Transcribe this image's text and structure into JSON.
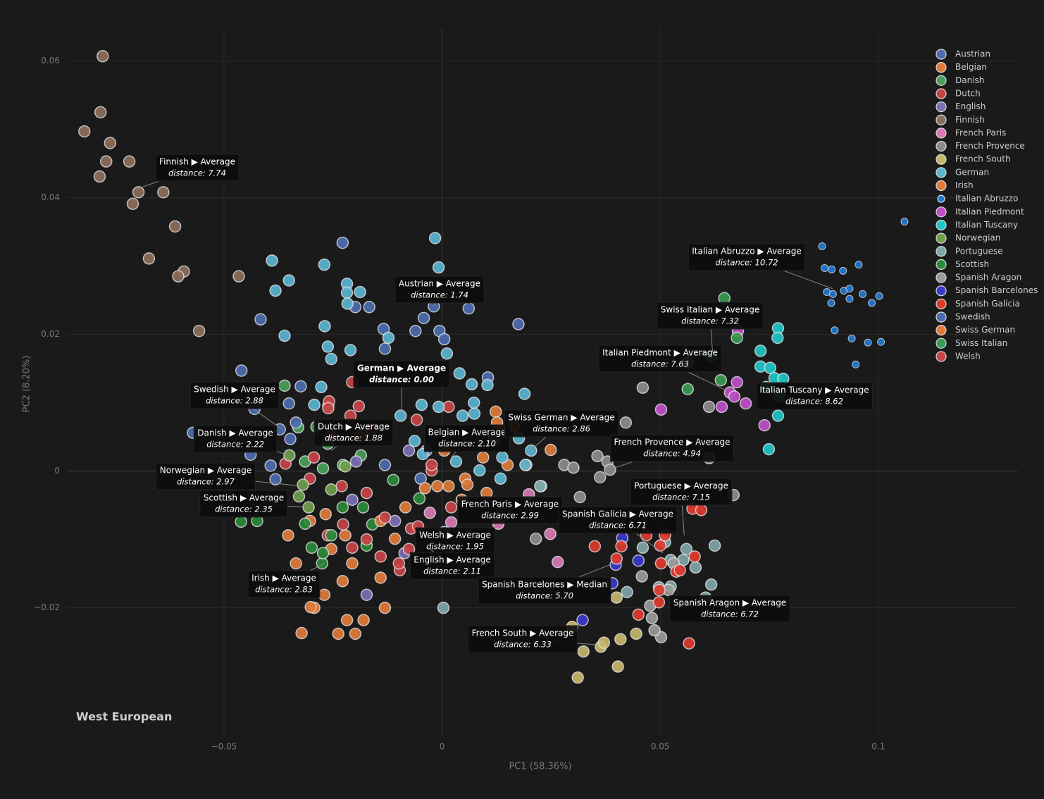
{
  "chart_data": {
    "type": "scatter",
    "title": "West European",
    "xlabel": "PC1 (58.36%)",
    "ylabel": "PC2 (8.20%)",
    "xlim": [
      -0.086,
      0.132
    ],
    "ylim": [
      -0.0388,
      0.0648
    ],
    "xticks": [
      {
        "value": -0.05,
        "label": "−0.05"
      },
      0,
      0.05,
      0.1
    ],
    "yticks": [
      {
        "value": -0.02,
        "label": "−0.02"
      },
      0,
      0.02,
      0.04,
      0.06
    ],
    "grid": true,
    "legend": "top-right",
    "series": [
      {
        "name": "Austrian",
        "color": "#4c6bb0",
        "x": [
          -0.0228,
          -0.0167,
          -0.0199,
          -0.0134,
          -0.0131,
          -0.0061,
          -0.0042,
          -0.0006,
          0.0005,
          0.0061,
          0.0175,
          -0.0019,
          0.0105,
          -0.0131,
          -0.0049
        ],
        "values": [
          0.0334,
          0.024,
          0.024,
          0.0208,
          0.0179,
          0.0205,
          0.0224,
          0.0205,
          0.0193,
          0.0238,
          0.0215,
          0.0241,
          0.0137,
          0.0009,
          -0.0011
        ]
      },
      {
        "name": "Belgian",
        "color": "#e07b3a",
        "x": [
          0.0123,
          0.0138,
          0.0005,
          0.0015,
          -0.0039,
          0.0053,
          0.0094,
          0.0102,
          0.015,
          0.0193,
          0.0249,
          0.0058
        ],
        "values": [
          0.0087,
          0.0059,
          0.003,
          -0.0022,
          -0.0025,
          -0.0011,
          0.002,
          -0.0032,
          0.0009,
          0.0009,
          0.0031,
          -0.002
        ]
      },
      {
        "name": "Danish",
        "color": "#4aa05a",
        "x": [
          -0.0361,
          -0.0261,
          -0.033,
          -0.0288,
          -0.0262,
          -0.0314,
          -0.0273,
          -0.0227,
          -0.0186
        ],
        "values": [
          0.0125,
          0.0095,
          0.0064,
          0.0065,
          0.004,
          0.0014,
          0.0004,
          0.0009,
          0.0023
        ]
      },
      {
        "name": "Dutch",
        "color": "#c84347",
        "x": [
          -0.0206,
          -0.0259,
          -0.0191,
          -0.0261,
          -0.021,
          -0.0058,
          0.0015,
          -0.0162,
          -0.0256,
          -0.0359,
          -0.0294,
          -0.0303,
          -0.023,
          -0.0173,
          -0.0024,
          -0.0071,
          -0.0097,
          -0.0262,
          -0.0206,
          -0.0141
        ],
        "values": [
          0.013,
          0.0102,
          0.0095,
          0.0092,
          0.0081,
          0.0075,
          0.0094,
          0.0061,
          0.0051,
          0.0011,
          0.002,
          -0.0011,
          -0.0022,
          -0.0032,
          0.0001,
          -0.0084,
          -0.0145,
          -0.0094,
          -0.0112,
          -0.0125
        ]
      },
      {
        "name": "English",
        "color": "#7b6fb5",
        "x": [
          -0.0173,
          -0.0197,
          -0.0076,
          -0.0108,
          -0.0086,
          -0.0206,
          -0.0036,
          0.0005
        ],
        "values": [
          -0.0181,
          0.0014,
          0.003,
          -0.0073,
          -0.012,
          -0.0042,
          0.003,
          -0.0089
        ]
      },
      {
        "name": "Finnish",
        "color": "#8d6e5a",
        "x": [
          -0.0778,
          -0.0783,
          -0.082,
          -0.0761,
          -0.077,
          -0.0717,
          -0.0785,
          -0.0696,
          -0.0639,
          -0.0709,
          -0.0612,
          -0.0672,
          -0.0592,
          -0.0605,
          -0.0466,
          -0.0557
        ],
        "values": [
          0.0607,
          0.0525,
          0.0497,
          0.048,
          0.0453,
          0.0453,
          0.0431,
          0.0408,
          0.0408,
          0.0391,
          0.0358,
          0.0311,
          0.0292,
          0.0285,
          0.0285,
          0.0205
        ]
      },
      {
        "name": "French Paris",
        "color": "#d978b4",
        "x": [
          0.0265,
          0.0248,
          0.0129,
          0.0021,
          -0.0028,
          0.0199
        ],
        "values": [
          -0.0133,
          -0.0092,
          -0.0077,
          -0.0075,
          -0.0061,
          -0.0034
        ]
      },
      {
        "name": "French Provence",
        "color": "#8c8c8c",
        "x": [
          0.0421,
          0.028,
          0.0301,
          0.0356,
          0.0379,
          0.0385,
          0.0362,
          0.046,
          0.0612,
          0.0612,
          0.0316,
          0.0215,
          0.0668
        ],
        "values": [
          0.0071,
          0.0009,
          0.0005,
          0.0022,
          0.0014,
          0.0002,
          -0.0009,
          0.0122,
          0.0094,
          0.0019,
          -0.0038,
          -0.0099,
          -0.0035
        ]
      },
      {
        "name": "French South",
        "color": "#c7b66a",
        "x": [
          0.0311,
          0.0324,
          0.0364,
          0.0409,
          0.0403,
          0.0445,
          0.0371,
          0.04,
          0.0298
        ],
        "values": [
          -0.0302,
          -0.0264,
          -0.0257,
          -0.0246,
          -0.0286,
          -0.0238,
          -0.0251,
          -0.0185,
          -0.0228
        ]
      },
      {
        "name": "German",
        "color": "#5ab4d0",
        "x": [
          -0.0016,
          -0.0008,
          -0.027,
          -0.039,
          -0.0351,
          -0.0382,
          -0.0218,
          -0.0218,
          -0.0188,
          -0.0217,
          -0.0269,
          -0.0262,
          -0.021,
          -0.0254,
          -0.0361,
          -0.0123,
          0.0011,
          0.004,
          0.0068,
          0.0104,
          0.0189,
          0.0073,
          -0.0047,
          0.0047,
          -0.0095,
          -0.0277,
          -0.0293,
          -0.0008,
          0.0074,
          -0.0063,
          -0.0044,
          0.0032,
          0.0204,
          0.0176,
          0.0138,
          0.0191,
          0.0086,
          0.0134,
          0.0227
        ],
        "values": [
          0.0341,
          0.0298,
          0.0302,
          0.0308,
          0.0279,
          0.0264,
          0.0274,
          0.0261,
          0.0262,
          0.0245,
          0.0212,
          0.0182,
          0.0177,
          0.0164,
          0.0198,
          0.0195,
          0.0172,
          0.0143,
          0.0127,
          0.0126,
          0.0113,
          0.01,
          0.0097,
          0.0081,
          0.0081,
          0.0123,
          0.0097,
          0.0094,
          0.0084,
          0.0044,
          0.0025,
          0.0014,
          0.003,
          0.0048,
          0.002,
          0.0009,
          0.0001,
          -0.0011,
          -0.0022
        ]
      },
      {
        "name": "Irish",
        "color": "#e07b3a",
        "x": [
          -0.0322,
          -0.0293,
          -0.0301,
          -0.0238,
          -0.0199,
          -0.0218,
          -0.018,
          -0.027,
          -0.0228,
          -0.0353,
          -0.0303,
          -0.0267,
          -0.0335,
          -0.0206,
          -0.0254,
          -0.0222,
          -0.0131,
          -0.0141
        ],
        "values": [
          -0.0237,
          -0.02,
          -0.0199,
          -0.0238,
          -0.0238,
          -0.0218,
          -0.0218,
          -0.0181,
          -0.0161,
          -0.0094,
          -0.0073,
          -0.0063,
          -0.0135,
          -0.0135,
          -0.0114,
          -0.0094,
          -0.02,
          -0.0156
        ]
      },
      {
        "name": "Italian Abruzzo",
        "color": "#1f78d4",
        "marker_size": 5,
        "x": [
          0.106,
          0.0871,
          0.0877,
          0.0893,
          0.0919,
          0.0955,
          0.0882,
          0.0896,
          0.0921,
          0.0934,
          0.0964,
          0.1002,
          0.0892,
          0.0934,
          0.0985,
          0.09,
          0.0939,
          0.0976,
          0.1006,
          0.0948
        ],
        "values": [
          0.0365,
          0.0329,
          0.0297,
          0.0295,
          0.0293,
          0.0302,
          0.0262,
          0.0259,
          0.0264,
          0.0267,
          0.0259,
          0.0256,
          0.0246,
          0.0252,
          0.0246,
          0.0206,
          0.0194,
          0.0188,
          0.0189,
          0.0156
        ]
      },
      {
        "name": "Italian Piedmont",
        "color": "#c04fc8",
        "x": [
          0.0678,
          0.0676,
          0.066,
          0.067,
          0.0696,
          0.0641,
          0.0739,
          0.0502,
          0.0563
        ],
        "values": [
          0.0205,
          0.013,
          0.0115,
          0.0109,
          0.0099,
          0.0094,
          0.0067,
          0.009,
          0.0159
        ]
      },
      {
        "name": "Italian Tuscany",
        "color": "#20c7c7",
        "x": [
          0.077,
          0.0769,
          0.073,
          0.073,
          0.0752,
          0.0762,
          0.0782,
          0.0743,
          0.0772,
          0.077,
          0.0749
        ],
        "values": [
          0.0209,
          0.0195,
          0.0176,
          0.0153,
          0.0151,
          0.0136,
          0.0135,
          0.0123,
          0.011,
          0.0081,
          0.0032
        ]
      },
      {
        "name": "Norwegian",
        "color": "#6ea04a",
        "x": [
          -0.0319,
          -0.035,
          -0.0254,
          -0.0328,
          -0.0222,
          -0.0306
        ],
        "values": [
          -0.002,
          0.0023,
          -0.0027,
          -0.0037,
          0.0007,
          -0.0053
        ]
      },
      {
        "name": "Portuguese",
        "color": "#7fa6a8",
        "x": [
          0.046,
          0.0511,
          0.056,
          0.0553,
          0.0581,
          0.0524,
          0.0497,
          0.0424,
          0.0617,
          0.0625,
          0.0604,
          0.0524,
          0.0225,
          0.0003
        ],
        "values": [
          -0.0112,
          -0.0104,
          -0.0114,
          -0.013,
          -0.0141,
          -0.0169,
          -0.017,
          -0.0177,
          -0.0166,
          -0.0109,
          -0.0185,
          -0.013,
          -0.0022,
          -0.02
        ]
      },
      {
        "name": "Scottish",
        "color": "#2a8a3a",
        "x": [
          -0.0461,
          -0.0424,
          -0.0314,
          -0.0299,
          -0.0275,
          -0.0273,
          -0.0254,
          -0.0228,
          -0.0181,
          -0.016,
          -0.0112,
          -0.0052,
          -0.0173
        ],
        "values": [
          -0.0074,
          -0.0073,
          -0.0077,
          -0.0112,
          -0.0135,
          -0.012,
          -0.0094,
          -0.0053,
          -0.0053,
          -0.0078,
          -0.0013,
          -0.004,
          -0.0109
        ]
      },
      {
        "name": "Spanish Aragon",
        "color": "#9a9a9a",
        "x": [
          0.0477,
          0.0502,
          0.0487,
          0.0481,
          0.0458,
          0.0531,
          0.0519
        ],
        "values": [
          -0.0197,
          -0.0243,
          -0.0233,
          -0.0215,
          -0.0154,
          -0.0135,
          -0.0174
        ]
      },
      {
        "name": "Spanish Barcelones",
        "color": "#3a3acc",
        "x": [
          0.0322,
          0.039,
          0.0413,
          0.045,
          0.0398
        ],
        "values": [
          -0.0218,
          -0.0164,
          -0.0098,
          -0.0131,
          -0.0137
        ]
      },
      {
        "name": "Spanish Galicia",
        "color": "#e03a2f",
        "x": [
          0.035,
          0.0411,
          0.0468,
          0.0511,
          0.05,
          0.0574,
          0.0594,
          0.0498,
          0.0497,
          0.0566,
          0.0537,
          0.0502,
          0.045,
          0.0579,
          0.0545,
          0.04
        ],
        "values": [
          -0.011,
          -0.011,
          -0.0094,
          -0.0094,
          -0.0109,
          -0.0055,
          -0.0057,
          -0.0174,
          -0.0192,
          -0.0252,
          -0.0147,
          -0.0135,
          -0.021,
          -0.0125,
          -0.0145,
          -0.0128
        ]
      },
      {
        "name": "Swedish",
        "color": "#4c6bb0",
        "x": [
          -0.0416,
          -0.046,
          -0.0571,
          -0.043,
          -0.0351,
          -0.0324,
          -0.0382,
          -0.0393,
          -0.0372,
          -0.0439,
          -0.0335,
          -0.0348
        ],
        "values": [
          0.0222,
          0.0147,
          0.0056,
          0.0091,
          0.0099,
          0.0124,
          -0.0012,
          0.0008,
          0.0061,
          0.0024,
          0.0071,
          0.0047
        ]
      },
      {
        "name": "Swiss German",
        "color": "#e07b3a",
        "x": [
          0.0165,
          0.0118,
          0.0045,
          -0.0011,
          -0.0084,
          -0.0108,
          -0.0141,
          -0.0189,
          0.0126
        ],
        "values": [
          0.0065,
          0.0045,
          -0.0042,
          -0.0022,
          -0.0053,
          -0.0099,
          -0.0073,
          0.0051,
          0.0071
        ]
      },
      {
        "name": "Swiss Italian",
        "color": "#3a9a50",
        "x": [
          0.0647,
          0.0617,
          0.0639,
          0.0563,
          0.0676
        ],
        "values": [
          0.0253,
          0.0169,
          0.0133,
          0.012,
          0.0195
        ]
      },
      {
        "name": "Welsh",
        "color": "#c84347",
        "x": [
          -0.0099,
          -0.0055,
          -0.0024,
          -0.0131,
          -0.0173,
          -0.0227,
          0.0021,
          -0.0076
        ],
        "values": [
          -0.0135,
          -0.0081,
          0.0009,
          -0.0068,
          -0.01,
          -0.0078,
          -0.0053,
          -0.0114
        ]
      }
    ],
    "annotations": [
      {
        "text": "Finnish ▶ Average",
        "subtext": "distance: 7.74",
        "x": -0.0699,
        "y": 0.0413
      },
      {
        "text": "Austrian ▶ Average",
        "subtext": "distance: 1.74",
        "x": -0.0019,
        "y": 0.0241
      },
      {
        "text": "German ▶ Average",
        "subtext": "distance: 0.00",
        "x": -0.0092,
        "y": 0.0081,
        "bold": true
      },
      {
        "text": "Swedish ▶ Average",
        "subtext": "distance: 2.88",
        "x": -0.0367,
        "y": 0.0061
      },
      {
        "text": "Danish ▶ Average",
        "subtext": "distance: 2.22",
        "x": -0.0335,
        "y": 0.002
      },
      {
        "text": "Norwegian ▶ Average",
        "subtext": "distance: 2.97",
        "x": -0.0319,
        "y": -0.0022
      },
      {
        "text": "Scottish ▶ Average",
        "subtext": "distance: 2.35",
        "x": -0.0303,
        "y": -0.0053
      },
      {
        "text": "Dutch ▶ Average",
        "subtext": "distance: 1.88",
        "x": -0.0254,
        "y": 0.003
      },
      {
        "text": "Belgian ▶ Average",
        "subtext": "distance: 2.10",
        "x": 0.0021,
        "y": 0.002
      },
      {
        "text": "Swiss German ▶ Average",
        "subtext": "distance: 2.86",
        "x": 0.0202,
        "y": 0.003
      },
      {
        "text": "French Paris ▶ Average",
        "subtext": "distance: 2.99",
        "x": 0.0126,
        "y": -0.0078
      },
      {
        "text": "Welsh ▶ Average",
        "subtext": "distance: 1.95",
        "x": -0.0011,
        "y": -0.0089
      },
      {
        "text": "English ▶ Average",
        "subtext": "distance: 2.11",
        "x": -0.0028,
        "y": -0.0114
      },
      {
        "text": "Irish ▶ Average",
        "subtext": "distance: 2.83",
        "x": -0.027,
        "y": -0.0135
      },
      {
        "text": "Spanish Barcelones ▶ Median",
        "subtext": "distance: 5.70",
        "x": 0.0393,
        "y": -0.0135
      },
      {
        "text": "French South ▶ Average",
        "subtext": "distance: 6.33",
        "x": 0.0353,
        "y": -0.0254
      },
      {
        "text": "Spanish Galicia ▶ Average",
        "subtext": "distance: 6.71",
        "x": 0.0506,
        "y": -0.012
      },
      {
        "text": "Portuguese ▶ Average",
        "subtext": "distance: 7.15",
        "x": 0.0555,
        "y": -0.0094
      },
      {
        "text": "French Provence ▶ Average",
        "subtext": "distance: 4.94",
        "x": 0.0393,
        "y": 0.0004
      },
      {
        "text": "Italian Piedmont ▶ Average",
        "subtext": "distance: 7.63",
        "x": 0.0652,
        "y": 0.0118
      },
      {
        "text": "Swiss Italian ▶ Average",
        "subtext": "distance: 7.32",
        "x": 0.062,
        "y": 0.0174
      },
      {
        "text": "Italian Abruzzo ▶ Average",
        "subtext": "distance: 10.72",
        "x": 0.0895,
        "y": 0.0267
      },
      {
        "text": "Italian Tuscany ▶ Average",
        "subtext": "distance: 8.62",
        "x": 0.0749,
        "y": 0.0123
      },
      {
        "text": "Spanish Aragon ▶ Average",
        "subtext": "distance: 6.72",
        "x": 0.0587,
        "y": -0.0207
      }
    ]
  }
}
